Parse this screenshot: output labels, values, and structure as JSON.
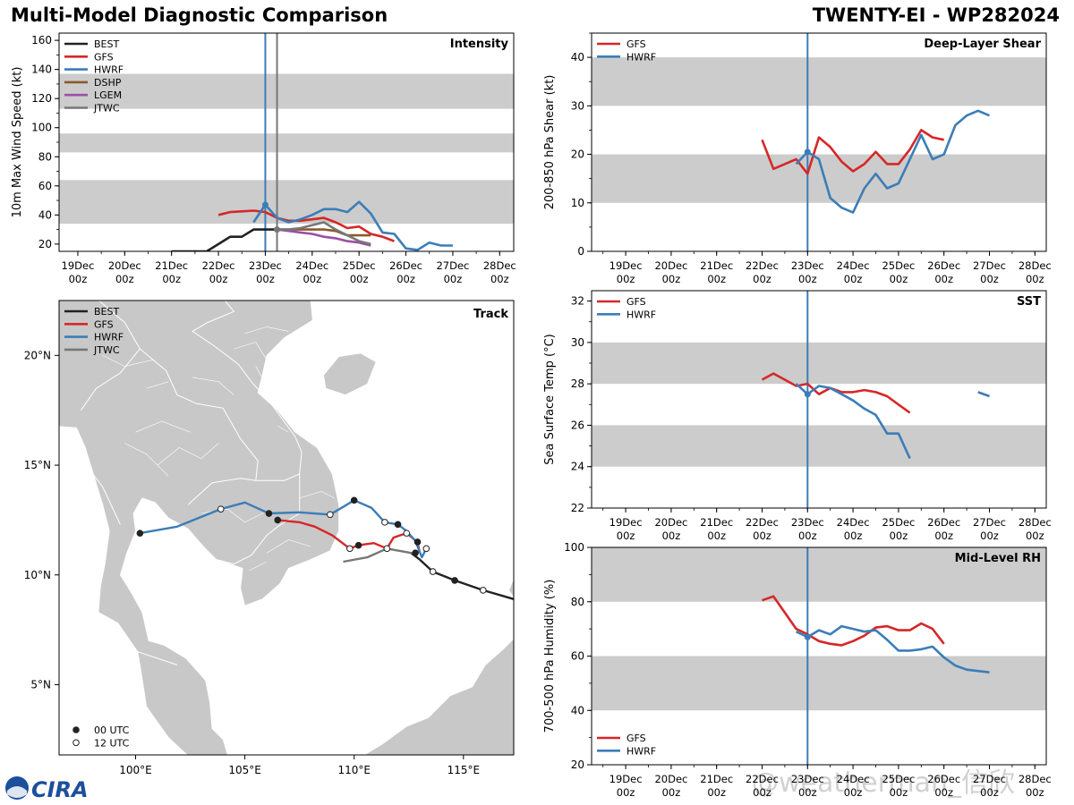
{
  "header": {
    "left_title": "Multi-Model Diagnostic Comparison",
    "right_title": "TWENTY-EI - WP282024",
    "logo_text": "CIRA"
  },
  "watermark": "@weatherman_信欣",
  "colors": {
    "BEST": "#222222",
    "GFS": "#d62728",
    "HWRF": "#3b7db8",
    "DSHP": "#8b5a2b",
    "LGEM": "#9b4fa5",
    "JTWC": "#777777",
    "band": "#cccccc",
    "land": "#c8c8c8",
    "vline_hwrf": "#3b7db8",
    "vline_jtwc": "#777777"
  },
  "chart_data": [
    {
      "id": "intensity",
      "type": "line",
      "panel_label": "Intensity",
      "ylabel": "10m Max Wind Speed (kt)",
      "ylim": [
        15,
        165
      ],
      "yticks": [
        20,
        40,
        60,
        80,
        100,
        120,
        140,
        160
      ],
      "xlim": [
        18.6,
        28.3
      ],
      "xticks": [
        19,
        20,
        21,
        22,
        23,
        24,
        25,
        26,
        27,
        28
      ],
      "xtick_labels": [
        "19Dec 00z",
        "20Dec 00z",
        "21Dec 00z",
        "22Dec 00z",
        "23Dec 00z",
        "24Dec 00z",
        "25Dec 00z",
        "26Dec 00z",
        "27Dec 00z",
        "28Dec 00z"
      ],
      "bands": [
        [
          34,
          64
        ],
        [
          83,
          96
        ],
        [
          113,
          137
        ]
      ],
      "vlines": [
        {
          "x": 23.0,
          "color": "vline_hwrf"
        },
        {
          "x": 23.25,
          "color": "vline_jtwc"
        }
      ],
      "legend": [
        "BEST",
        "GFS",
        "HWRF",
        "DSHP",
        "LGEM",
        "JTWC"
      ],
      "series": [
        {
          "name": "BEST",
          "x": [
            21.0,
            21.25,
            21.5,
            21.75,
            22.0,
            22.25,
            22.5,
            22.75,
            23.0,
            23.25
          ],
          "y": [
            15,
            15,
            15,
            15,
            20,
            25,
            25,
            30,
            30,
            30
          ]
        },
        {
          "name": "GFS",
          "x": [
            22.0,
            22.25,
            22.5,
            22.75,
            23.0,
            23.25,
            23.5,
            23.75,
            24.0,
            24.25,
            24.5,
            24.75,
            25.0,
            25.25,
            25.5,
            25.75
          ],
          "y": [
            40,
            42,
            42.5,
            43,
            42,
            38,
            36,
            36,
            37,
            38,
            35,
            31,
            32,
            27,
            25,
            22
          ]
        },
        {
          "name": "HWRF",
          "x": [
            22.75,
            23.0,
            23.25,
            23.5,
            23.75,
            24.0,
            24.25,
            24.5,
            24.75,
            25.0,
            25.25,
            25.5,
            25.75,
            26.0,
            26.25,
            26.5,
            26.75,
            27.0
          ],
          "y": [
            35,
            47,
            38,
            35,
            37,
            40,
            44,
            44,
            42,
            49,
            41,
            28,
            27,
            17,
            16,
            21,
            19,
            19
          ]
        },
        {
          "name": "DSHP",
          "x": [
            23.25,
            23.5,
            23.75,
            24.0,
            24.25,
            24.5,
            24.75,
            25.0,
            25.25
          ],
          "y": [
            30,
            30,
            30,
            30,
            30,
            29,
            26,
            26,
            26
          ]
        },
        {
          "name": "LGEM",
          "x": [
            23.25,
            23.5,
            23.75,
            24.0,
            24.25,
            24.5,
            24.75,
            25.0,
            25.25
          ],
          "y": [
            30,
            29,
            28,
            27,
            25,
            24,
            22,
            21,
            19
          ]
        },
        {
          "name": "JTWC",
          "x": [
            23.25,
            23.5,
            23.75,
            24.0,
            24.25,
            24.5,
            24.75,
            25.0,
            25.25
          ],
          "y": [
            30,
            30,
            31,
            33,
            35,
            30,
            26,
            22,
            20
          ]
        }
      ]
    },
    {
      "id": "shear",
      "type": "line",
      "panel_label": "Deep-Layer Shear",
      "ylabel": "200-850 hPa Shear (kt)",
      "ylim": [
        0,
        45
      ],
      "yticks": [
        0,
        10,
        20,
        30,
        40
      ],
      "xlim": [
        18.25,
        28.25
      ],
      "xticks": [
        19,
        20,
        21,
        22,
        23,
        24,
        25,
        26,
        27,
        28
      ],
      "xtick_labels": [
        "19Dec 00z",
        "20Dec 00z",
        "21Dec 00z",
        "22Dec 00z",
        "23Dec 00z",
        "24Dec 00z",
        "25Dec 00z",
        "26Dec 00z",
        "27Dec 00z",
        "28Dec 00z"
      ],
      "bands": [
        [
          10,
          20
        ],
        [
          30,
          40
        ]
      ],
      "vlines": [
        {
          "x": 23.0,
          "color": "vline_hwrf"
        }
      ],
      "legend": [
        "GFS",
        "HWRF"
      ],
      "series": [
        {
          "name": "GFS",
          "x": [
            22.0,
            22.25,
            22.5,
            22.75,
            23.0,
            23.25,
            23.5,
            23.75,
            24.0,
            24.25,
            24.5,
            24.75,
            25.0,
            25.25,
            25.5,
            25.75,
            26.0
          ],
          "y": [
            23,
            17,
            18,
            19,
            16,
            23.5,
            21.5,
            18.5,
            16.5,
            18,
            20.5,
            18,
            18,
            21,
            25,
            23.5,
            23
          ]
        },
        {
          "name": "HWRF",
          "x": [
            22.75,
            23.0,
            23.25,
            23.5,
            23.75,
            24.0,
            24.25,
            24.5,
            24.75,
            25.0,
            25.25,
            25.5,
            25.75,
            26.0,
            26.25,
            26.5,
            26.75,
            27.0
          ],
          "y": [
            18,
            20.5,
            19,
            11,
            9,
            8,
            13,
            16,
            13,
            14,
            19,
            24,
            19,
            20,
            26,
            28,
            29,
            28
          ]
        }
      ]
    },
    {
      "id": "sst",
      "type": "line",
      "panel_label": "SST",
      "ylabel": "Sea Surface Temp (°C)",
      "ylim": [
        22,
        32.5
      ],
      "yticks": [
        22,
        24,
        26,
        28,
        30,
        32
      ],
      "xlim": [
        18.25,
        28.25
      ],
      "xticks": [
        19,
        20,
        21,
        22,
        23,
        24,
        25,
        26,
        27,
        28
      ],
      "xtick_labels": [
        "19Dec 00z",
        "20Dec 00z",
        "21Dec 00z",
        "22Dec 00z",
        "23Dec 00z",
        "24Dec 00z",
        "25Dec 00z",
        "26Dec 00z",
        "27Dec 00z",
        "28Dec 00z"
      ],
      "bands": [
        [
          24,
          26
        ],
        [
          28,
          30
        ]
      ],
      "vlines": [
        {
          "x": 23.0,
          "color": "vline_hwrf"
        }
      ],
      "legend": [
        "GFS",
        "HWRF"
      ],
      "series": [
        {
          "name": "GFS",
          "x": [
            22.0,
            22.25,
            22.5,
            22.75,
            23.0,
            23.25,
            23.5,
            23.75,
            24.0,
            24.25,
            24.5,
            24.75,
            25.0,
            25.25
          ],
          "y": [
            28.2,
            28.5,
            28.2,
            27.9,
            28.0,
            27.5,
            27.8,
            27.6,
            27.6,
            27.7,
            27.6,
            27.4,
            27.0,
            26.6
          ]
        },
        {
          "name": "HWRF",
          "x": [
            22.75,
            23.0,
            23.25,
            23.5,
            23.75,
            24.0,
            24.25,
            24.5,
            24.75,
            25.0,
            25.25
          ],
          "y": [
            28.0,
            27.5,
            27.9,
            27.8,
            27.5,
            27.2,
            26.8,
            26.5,
            25.6,
            25.6,
            24.4
          ]
        },
        {
          "name": "HWRF",
          "x": [
            26.75,
            27.0
          ],
          "y": [
            27.6,
            27.4
          ]
        }
      ]
    },
    {
      "id": "rh",
      "type": "line",
      "panel_label": "Mid-Level RH",
      "ylabel": "700-500 hPa Humidity (%)",
      "ylim": [
        20,
        100
      ],
      "yticks": [
        20,
        40,
        60,
        80,
        100
      ],
      "xlim": [
        18.25,
        28.25
      ],
      "xticks": [
        19,
        20,
        21,
        22,
        23,
        24,
        25,
        26,
        27,
        28
      ],
      "xtick_labels": [
        "19Dec 00z",
        "20Dec 00z",
        "21Dec 00z",
        "22Dec 00z",
        "23Dec 00z",
        "24Dec 00z",
        "25Dec 00z",
        "26Dec 00z",
        "27Dec 00z",
        "28Dec 00z"
      ],
      "bands": [
        [
          40,
          60
        ],
        [
          80,
          100
        ]
      ],
      "vlines": [
        {
          "x": 23.0,
          "color": "vline_hwrf"
        }
      ],
      "legend": [
        "GFS",
        "HWRF"
      ],
      "series": [
        {
          "name": "GFS",
          "x": [
            22.0,
            22.25,
            22.5,
            22.75,
            23.0,
            23.25,
            23.5,
            23.75,
            24.0,
            24.25,
            24.5,
            24.75,
            25.0,
            25.25,
            25.5,
            25.75,
            26.0
          ],
          "y": [
            80.5,
            82,
            76,
            70,
            68,
            65.5,
            64.5,
            64,
            65.5,
            67.5,
            70.5,
            71,
            69.5,
            69.5,
            72,
            70,
            64.5
          ]
        },
        {
          "name": "HWRF",
          "x": [
            22.75,
            23.0,
            23.25,
            23.5,
            23.75,
            24.0,
            24.25,
            24.5,
            24.75,
            25.0,
            25.25,
            25.5,
            25.75,
            26.0,
            26.25,
            26.5,
            26.75,
            27.0
          ],
          "y": [
            69,
            67,
            69.5,
            68,
            71,
            70,
            69,
            69.5,
            66,
            62,
            62,
            62.5,
            63.5,
            59.5,
            56.5,
            55,
            54.5,
            54
          ]
        }
      ]
    },
    {
      "id": "track",
      "type": "scatter",
      "panel_label": "Track",
      "lon_range": [
        96.5,
        117.3
      ],
      "lat_range": [
        1.8,
        22.5
      ],
      "lon_ticks": [
        100,
        105,
        110,
        115
      ],
      "lon_tick_labels": [
        "100°E",
        "105°E",
        "110°E",
        "115°E"
      ],
      "lat_ticks": [
        5,
        10,
        15,
        20
      ],
      "lat_tick_labels": [
        "5°N",
        "10°N",
        "15°N",
        "20°N"
      ],
      "legend": [
        "BEST",
        "GFS",
        "HWRF",
        "JTWC"
      ],
      "marker_legend": [
        {
          "label": "00 UTC",
          "fill": "filled"
        },
        {
          "label": "12 UTC",
          "fill": "open"
        }
      ],
      "series": [
        {
          "name": "BEST",
          "lon": [
            117.3,
            115.9,
            114.6,
            113.6,
            113.0,
            112.6
          ],
          "lat": [
            8.9,
            9.3,
            9.75,
            10.15,
            10.7,
            11.0
          ],
          "markers": [
            null,
            "open",
            "filled",
            "open",
            null,
            null
          ]
        },
        {
          "name": "GFS",
          "lon": [
            113.0,
            112.9,
            112.4,
            111.8,
            111.5,
            110.9,
            110.2,
            109.8,
            109.0,
            108.2,
            107.5,
            106.5
          ],
          "lat": [
            11.0,
            11.5,
            11.9,
            11.7,
            11.2,
            11.45,
            11.35,
            11.2,
            11.8,
            12.2,
            12.4,
            12.5
          ],
          "markers": [
            null,
            "filled",
            "open",
            null,
            "open",
            null,
            "filled",
            "open",
            null,
            null,
            null,
            "filled"
          ]
        },
        {
          "name": "HWRF",
          "lon": [
            113.3,
            113.1,
            112.8,
            112.4,
            112.0,
            111.4,
            110.8,
            110.0,
            109.5,
            108.9,
            107.5,
            106.1,
            105.0,
            103.9,
            101.9,
            100.2
          ],
          "lat": [
            11.2,
            10.8,
            11.55,
            12.0,
            12.3,
            12.4,
            13.05,
            13.4,
            13.1,
            12.75,
            12.85,
            12.8,
            13.3,
            13.0,
            12.2,
            11.9
          ],
          "markers": [
            "open",
            null,
            null,
            null,
            "filled",
            "open",
            null,
            "filled",
            null,
            "open",
            null,
            "filled",
            null,
            "open",
            null,
            "filled"
          ]
        },
        {
          "name": "JTWC",
          "lon": [
            112.8,
            112.6,
            111.5,
            110.6,
            109.5
          ],
          "lat": [
            11.0,
            11.0,
            11.2,
            10.8,
            10.6
          ],
          "markers": [
            "filled",
            null,
            null,
            null,
            null
          ]
        }
      ]
    }
  ]
}
